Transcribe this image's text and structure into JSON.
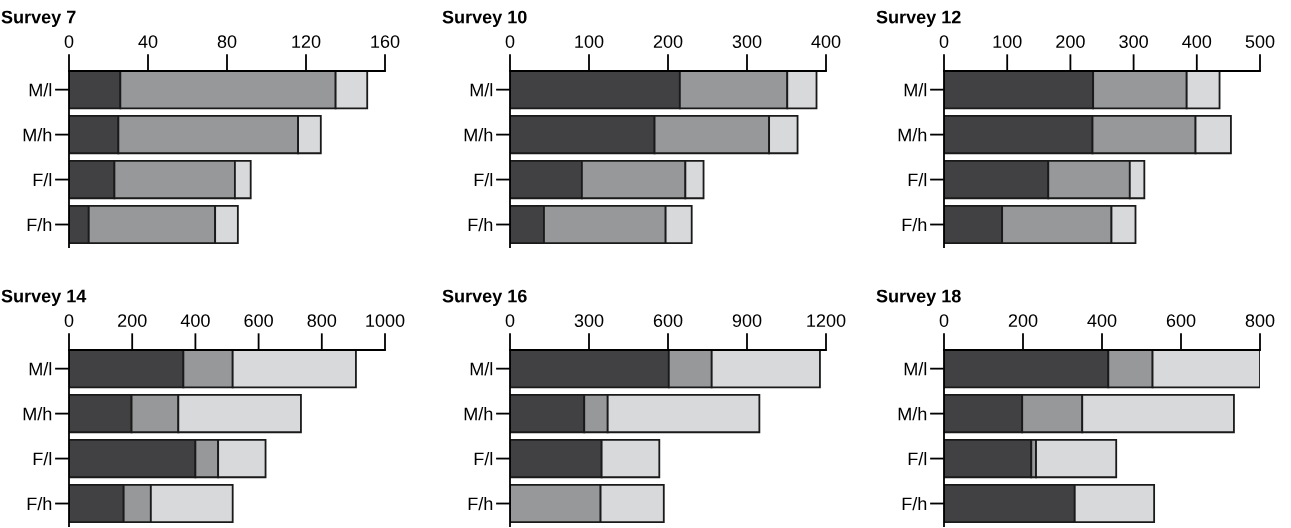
{
  "chart_data": [
    {
      "type": "bar",
      "title": "Survey 7",
      "orientation": "horizontal",
      "stacked": true,
      "categories": [
        "M/l",
        "M/h",
        "F/l",
        "F/h"
      ],
      "xlim": [
        0,
        160
      ],
      "xticks": [
        0,
        40,
        80,
        120,
        160
      ],
      "series": [
        {
          "color": "#414143",
          "values": [
            26,
            25,
            23,
            10
          ]
        },
        {
          "color": "#97989a",
          "values": [
            109,
            91,
            61,
            64
          ]
        },
        {
          "color": "#d8d9db",
          "values": [
            16,
            11.5,
            8,
            11.5
          ]
        }
      ]
    },
    {
      "type": "bar",
      "title": "Survey 10",
      "orientation": "horizontal",
      "stacked": true,
      "categories": [
        "M/l",
        "M/h",
        "F/l",
        "F/h"
      ],
      "xlim": [
        0,
        400
      ],
      "xticks": [
        0,
        100,
        200,
        300,
        400
      ],
      "series": [
        {
          "color": "#414143",
          "values": [
            215,
            183,
            91,
            43
          ]
        },
        {
          "color": "#97989a",
          "values": [
            136,
            145,
            131,
            154
          ]
        },
        {
          "color": "#d8d9db",
          "values": [
            37,
            36,
            23,
            33
          ]
        }
      ]
    },
    {
      "type": "bar",
      "title": "Survey 12",
      "orientation": "horizontal",
      "stacked": true,
      "categories": [
        "M/l",
        "M/h",
        "F/l",
        "F/h"
      ],
      "xlim": [
        0,
        500
      ],
      "xticks": [
        0,
        100,
        200,
        300,
        400,
        500
      ],
      "series": [
        {
          "color": "#414143",
          "values": [
            236,
            235,
            165,
            92
          ]
        },
        {
          "color": "#97989a",
          "values": [
            148,
            163,
            129,
            173
          ]
        },
        {
          "color": "#d8d9db",
          "values": [
            52,
            56,
            23,
            38
          ]
        }
      ]
    },
    {
      "type": "bar",
      "title": "Survey 14",
      "orientation": "horizontal",
      "stacked": true,
      "categories": [
        "M/l",
        "M/h",
        "F/l",
        "F/h"
      ],
      "xlim": [
        0,
        1000
      ],
      "xticks": [
        0,
        200,
        400,
        600,
        800,
        1000
      ],
      "series": [
        {
          "color": "#414143",
          "values": [
            362,
            198,
            400,
            173
          ]
        },
        {
          "color": "#97989a",
          "values": [
            156,
            148,
            72,
            86
          ]
        },
        {
          "color": "#d8d9db",
          "values": [
            390,
            388,
            150,
            259
          ]
        }
      ]
    },
    {
      "type": "bar",
      "title": "Survey 16",
      "orientation": "horizontal",
      "stacked": true,
      "categories": [
        "M/l",
        "M/h",
        "F/l",
        "F/h"
      ],
      "xlim": [
        0,
        1200
      ],
      "xticks": [
        0,
        300,
        600,
        900,
        1200
      ],
      "series": [
        {
          "color": "#414143",
          "values": [
            603,
            282,
            348,
            0
          ]
        },
        {
          "color": "#97989a",
          "values": [
            163,
            89,
            null,
            344
          ]
        },
        {
          "color": "#d8d9db",
          "values": [
            411,
            576,
            219,
            240
          ]
        }
      ]
    },
    {
      "type": "bar",
      "title": "Survey 18",
      "orientation": "horizontal",
      "stacked": true,
      "categories": [
        "M/l",
        "M/h",
        "F/l",
        "F/h"
      ],
      "xlim": [
        0,
        800
      ],
      "xticks": [
        0,
        200,
        400,
        600,
        800
      ],
      "series": [
        {
          "color": "#414143",
          "values": [
            416,
            198,
            221,
            331
          ]
        },
        {
          "color": "#97989a",
          "values": [
            112,
            152,
            12,
            0
          ]
        },
        {
          "color": "#d8d9db",
          "values": [
            272,
            384,
            203,
            201
          ]
        }
      ]
    }
  ]
}
